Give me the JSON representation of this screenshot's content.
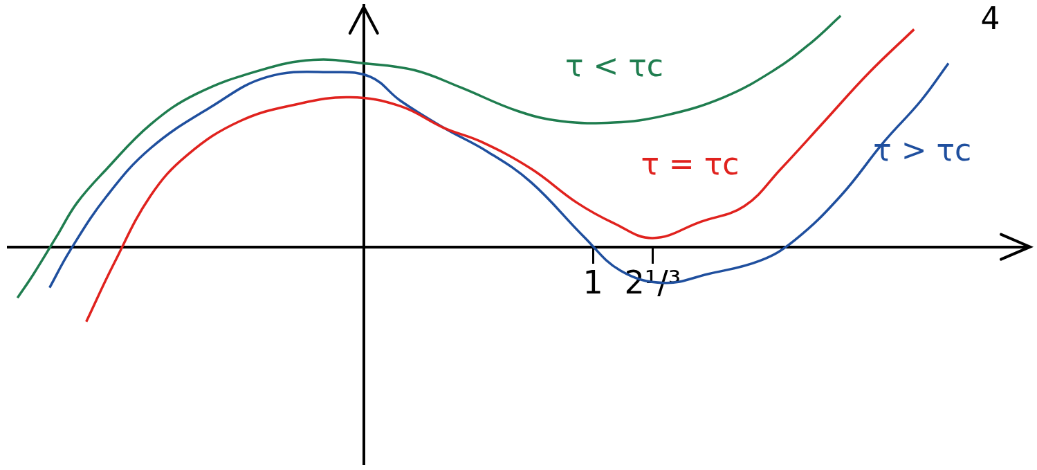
{
  "chart_data": {
    "type": "line",
    "xlim": [
      -1.55,
      2.9
    ],
    "xticks": [
      1,
      {
        "value": 1.26,
        "label": "2¹/³"
      }
    ],
    "ylim": [
      -3.2,
      3.55
    ],
    "yticks": [],
    "tick_labels": "x",
    "grid": false,
    "series": [
      {
        "name": "τ < τc",
        "color": "#1f7d4f",
        "line_style": "solid",
        "x": [
          -1.51,
          -1.44,
          -1.34,
          -1.25,
          -1.12,
          -0.93,
          -0.73,
          -0.45,
          -0.22,
          0,
          0.22,
          0.42,
          0.67,
          0.86,
          1.09,
          1.31,
          1.57,
          1.79,
          1.95,
          2.08
        ],
        "values": [
          -0.75,
          -0.4,
          0.15,
          0.65,
          1.15,
          1.8,
          2.25,
          2.6,
          2.75,
          2.7,
          2.6,
          2.35,
          2.0,
          1.85,
          1.83,
          1.93,
          2.2,
          2.6,
          3.0,
          3.4
        ]
      },
      {
        "name": "τ = τc",
        "color": "#e0221e",
        "line_style": "solid",
        "x": [
          -1.21,
          -1.09,
          -0.93,
          -0.77,
          -0.54,
          -0.29,
          -0.06,
          0.16,
          0.35,
          0.51,
          0.73,
          0.93,
          1.09,
          1.26,
          1.47,
          1.66,
          1.82,
          2.01,
          2.2,
          2.4
        ],
        "values": [
          -1.1,
          -0.25,
          0.75,
          1.35,
          1.85,
          2.1,
          2.2,
          2.07,
          1.75,
          1.55,
          1.15,
          0.65,
          0.35,
          0.13,
          0.37,
          0.6,
          1.15,
          1.85,
          2.55,
          3.2
        ]
      },
      {
        "name": "τ > τc",
        "color": "#1f4f9e",
        "line_style": "solid",
        "x": [
          -1.37,
          -1.28,
          -1.12,
          -0.93,
          -0.67,
          -0.42,
          -0.13,
          0.03,
          0.16,
          0.35,
          0.54,
          0.73,
          0.96,
          1.12,
          1.31,
          1.5,
          1.73,
          1.88,
          2.08,
          2.27,
          2.43,
          2.55
        ],
        "values": [
          -0.6,
          -0.05,
          0.75,
          1.45,
          2.05,
          2.5,
          2.57,
          2.5,
          2.15,
          1.75,
          1.4,
          0.95,
          0.15,
          -0.35,
          -0.53,
          -0.4,
          -0.2,
          0.1,
          0.75,
          1.55,
          2.15,
          2.7
        ]
      }
    ],
    "annotations": [
      {
        "text": "4"
      }
    ]
  }
}
